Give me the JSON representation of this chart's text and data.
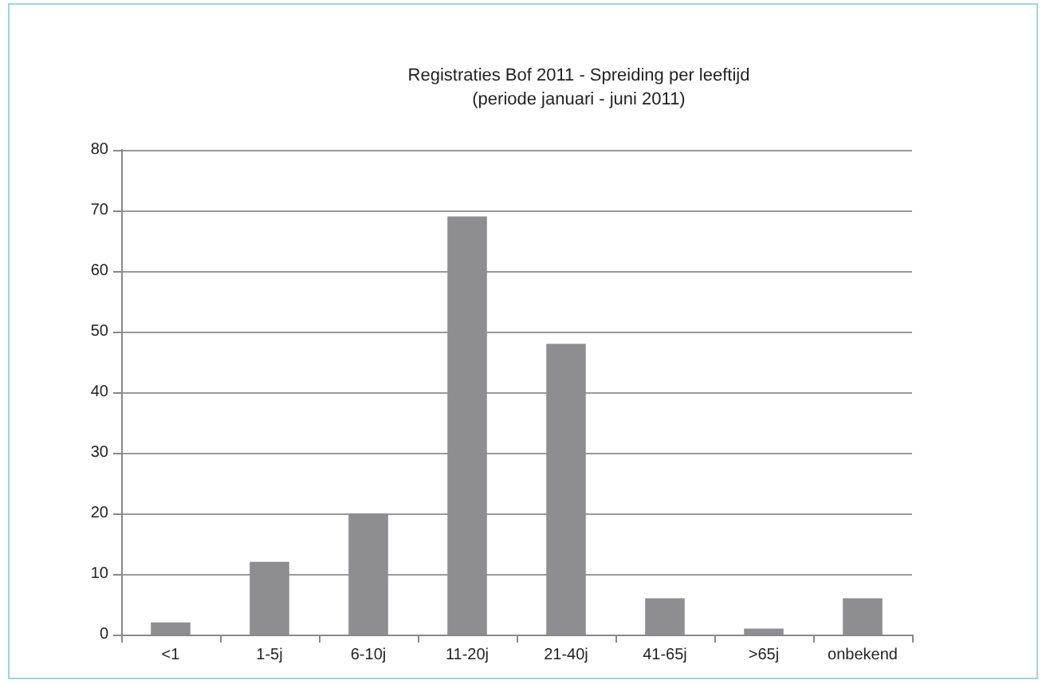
{
  "chart_data": {
    "type": "bar",
    "title": "Registraties Bof 2011 - Spreiding per leeftijd",
    "subtitle": "(periode januari - juni 2011)",
    "categories": [
      "<1",
      "1-5j",
      "6-10j",
      "11-20j",
      "21-40j",
      "41-65j",
      ">65j",
      "onbekend"
    ],
    "values": [
      2,
      12,
      20,
      69,
      48,
      6,
      1,
      6
    ],
    "color": "#8e8e92",
    "ylim": [
      0,
      80
    ],
    "yticks": [
      0,
      10,
      20,
      30,
      40,
      50,
      60,
      70,
      80
    ],
    "grid": "y"
  }
}
